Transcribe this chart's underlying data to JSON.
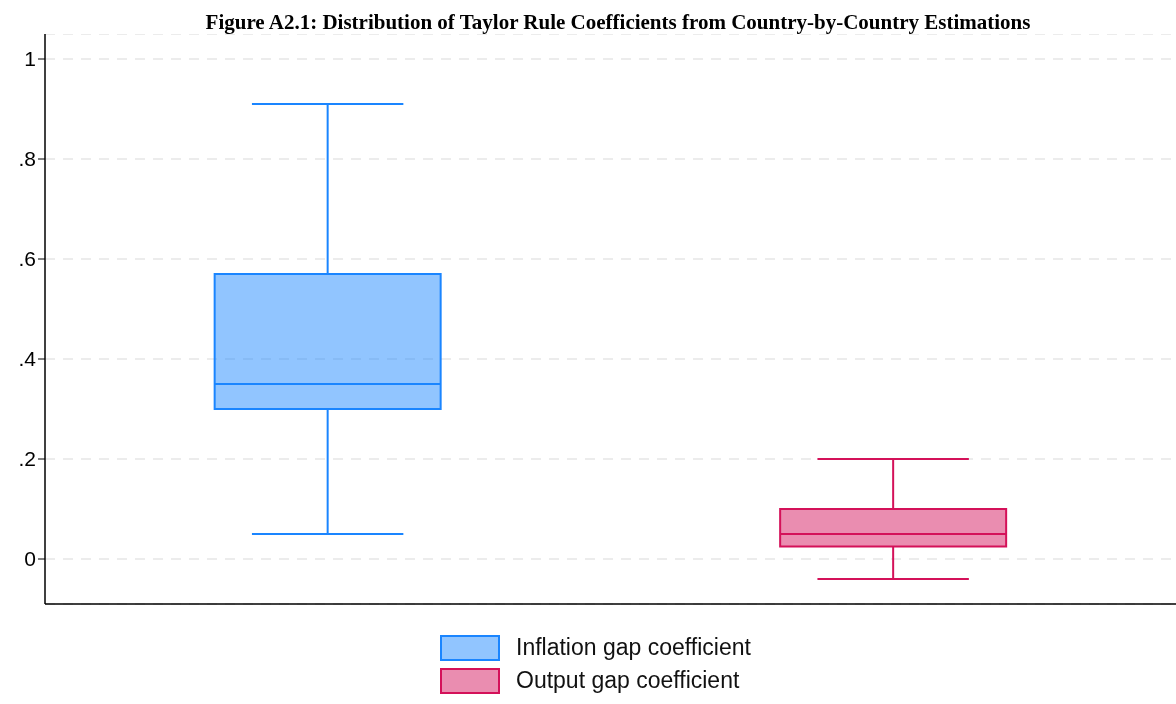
{
  "chart_data": {
    "type": "box",
    "title": "Figure A2.1: Distribution of Taylor Rule Coefficients from Country-by-Country Estimations",
    "categories": [
      null,
      null
    ],
    "series": [
      {
        "name": "Inflation gap coefficient",
        "color": "#1a85ff",
        "boxes": [
          {
            "low": 0.05,
            "q1": 0.3,
            "median": 0.35,
            "q3": 0.57,
            "high": 0.91
          },
          null
        ]
      },
      {
        "name": "Output gap coefficient",
        "color": "#d41159",
        "boxes": [
          null,
          {
            "low": -0.04,
            "q1": 0.025,
            "median": 0.05,
            "q3": 0.1,
            "high": 0.2
          }
        ]
      }
    ],
    "ylim": [
      -0.09,
      1.05
    ],
    "yticks": [
      0,
      {
        "value": 0.2,
        "label": ".2"
      },
      {
        "value": 0.4,
        "label": ".4"
      },
      {
        "value": 0.6,
        "label": ".6"
      },
      {
        "value": 0.8,
        "label": ".8"
      },
      1
    ],
    "grid": "y",
    "legend": "bottom",
    "tick_labels": "y"
  }
}
